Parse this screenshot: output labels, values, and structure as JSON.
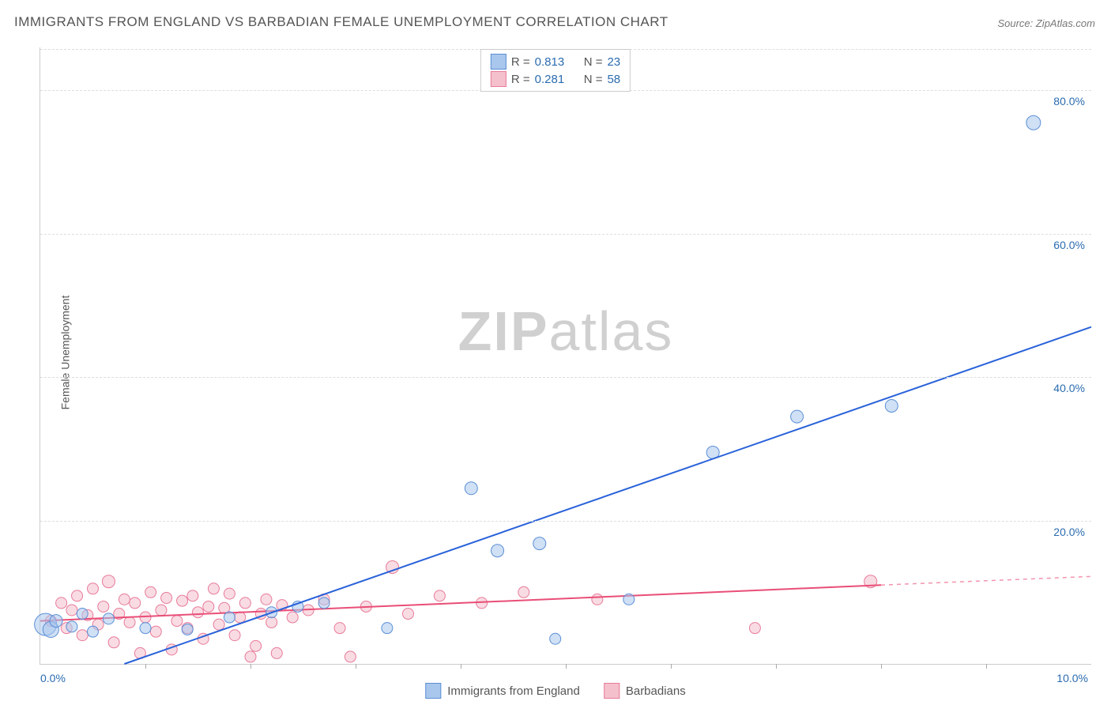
{
  "title": "IMMIGRANTS FROM ENGLAND VS BARBADIAN FEMALE UNEMPLOYMENT CORRELATION CHART",
  "source_label": "Source: ",
  "source_value": "ZipAtlas.com",
  "y_axis_label": "Female Unemployment",
  "watermark_zip": "ZIP",
  "watermark_atlas": "atlas",
  "chart": {
    "type": "scatter",
    "x_min": 0.0,
    "x_max": 10.0,
    "y_min": 0.0,
    "y_max": 86.0,
    "x_tick_labels": [
      {
        "pos": 0.0,
        "label": "0.0%"
      },
      {
        "pos": 10.0,
        "label": "10.0%"
      }
    ],
    "x_minor_ticks": [
      1.0,
      2.0,
      3.0,
      4.0,
      5.0,
      6.0,
      7.0,
      8.0,
      9.0
    ],
    "y_tick_labels": [
      {
        "pos": 20.0,
        "label": "20.0%"
      },
      {
        "pos": 40.0,
        "label": "40.0%"
      },
      {
        "pos": 60.0,
        "label": "60.0%"
      },
      {
        "pos": 80.0,
        "label": "80.0%"
      }
    ],
    "grid_color": "#dddddd",
    "background_color": "#ffffff",
    "series": [
      {
        "name": "Immigrants from England",
        "color_fill": "#a9c7ec",
        "color_stroke": "#5b8fd6",
        "trend_color": "#2962d9",
        "r_label": "R =",
        "r_value": "0.813",
        "n_label": "N =",
        "n_value": "23",
        "trend_line": {
          "x1": 0.8,
          "y1": 0.0,
          "x2": 10.0,
          "y2": 47.0
        },
        "trend_dash_extension": null,
        "points": [
          {
            "x": 0.05,
            "y": 5.5,
            "r": 14
          },
          {
            "x": 0.1,
            "y": 4.8,
            "r": 10
          },
          {
            "x": 0.15,
            "y": 6.0,
            "r": 8
          },
          {
            "x": 0.3,
            "y": 5.2,
            "r": 7
          },
          {
            "x": 0.4,
            "y": 7.0,
            "r": 7
          },
          {
            "x": 0.5,
            "y": 4.5,
            "r": 7
          },
          {
            "x": 0.65,
            "y": 6.3,
            "r": 7
          },
          {
            "x": 1.0,
            "y": 5.0,
            "r": 7
          },
          {
            "x": 1.4,
            "y": 4.8,
            "r": 7
          },
          {
            "x": 1.8,
            "y": 6.5,
            "r": 7
          },
          {
            "x": 2.2,
            "y": 7.2,
            "r": 7
          },
          {
            "x": 2.45,
            "y": 8.0,
            "r": 7
          },
          {
            "x": 2.7,
            "y": 8.5,
            "r": 7
          },
          {
            "x": 3.3,
            "y": 5.0,
            "r": 7
          },
          {
            "x": 4.1,
            "y": 24.5,
            "r": 8
          },
          {
            "x": 4.35,
            "y": 15.8,
            "r": 8
          },
          {
            "x": 4.75,
            "y": 16.8,
            "r": 8
          },
          {
            "x": 4.9,
            "y": 3.5,
            "r": 7
          },
          {
            "x": 5.6,
            "y": 9.0,
            "r": 7
          },
          {
            "x": 6.4,
            "y": 29.5,
            "r": 8
          },
          {
            "x": 7.2,
            "y": 34.5,
            "r": 8
          },
          {
            "x": 8.1,
            "y": 36.0,
            "r": 8
          },
          {
            "x": 9.45,
            "y": 75.5,
            "r": 9
          }
        ]
      },
      {
        "name": "Barbadians",
        "color_fill": "#f4c0cc",
        "color_stroke": "#e87b9a",
        "trend_color": "#e94e77",
        "r_label": "R =",
        "r_value": "0.281",
        "n_label": "N =",
        "n_value": "58",
        "trend_line": {
          "x1": 0.0,
          "y1": 6.0,
          "x2": 8.0,
          "y2": 11.0
        },
        "trend_dash_extension": {
          "x1": 8.0,
          "y1": 11.0,
          "x2": 10.0,
          "y2": 12.2
        },
        "points": [
          {
            "x": 0.1,
            "y": 6.0,
            "r": 7
          },
          {
            "x": 0.2,
            "y": 8.5,
            "r": 7
          },
          {
            "x": 0.25,
            "y": 5.0,
            "r": 7
          },
          {
            "x": 0.3,
            "y": 7.5,
            "r": 7
          },
          {
            "x": 0.35,
            "y": 9.5,
            "r": 7
          },
          {
            "x": 0.4,
            "y": 4.0,
            "r": 7
          },
          {
            "x": 0.45,
            "y": 6.8,
            "r": 7
          },
          {
            "x": 0.5,
            "y": 10.5,
            "r": 7
          },
          {
            "x": 0.55,
            "y": 5.5,
            "r": 7
          },
          {
            "x": 0.6,
            "y": 8.0,
            "r": 7
          },
          {
            "x": 0.65,
            "y": 11.5,
            "r": 8
          },
          {
            "x": 0.7,
            "y": 3.0,
            "r": 7
          },
          {
            "x": 0.75,
            "y": 7.0,
            "r": 7
          },
          {
            "x": 0.8,
            "y": 9.0,
            "r": 7
          },
          {
            "x": 0.85,
            "y": 5.8,
            "r": 7
          },
          {
            "x": 0.9,
            "y": 8.5,
            "r": 7
          },
          {
            "x": 0.95,
            "y": 1.5,
            "r": 7
          },
          {
            "x": 1.0,
            "y": 6.5,
            "r": 7
          },
          {
            "x": 1.05,
            "y": 10.0,
            "r": 7
          },
          {
            "x": 1.1,
            "y": 4.5,
            "r": 7
          },
          {
            "x": 1.15,
            "y": 7.5,
            "r": 7
          },
          {
            "x": 1.2,
            "y": 9.2,
            "r": 7
          },
          {
            "x": 1.25,
            "y": 2.0,
            "r": 7
          },
          {
            "x": 1.3,
            "y": 6.0,
            "r": 7
          },
          {
            "x": 1.35,
            "y": 8.8,
            "r": 7
          },
          {
            "x": 1.4,
            "y": 5.0,
            "r": 7
          },
          {
            "x": 1.45,
            "y": 9.5,
            "r": 7
          },
          {
            "x": 1.5,
            "y": 7.2,
            "r": 7
          },
          {
            "x": 1.55,
            "y": 3.5,
            "r": 7
          },
          {
            "x": 1.6,
            "y": 8.0,
            "r": 7
          },
          {
            "x": 1.65,
            "y": 10.5,
            "r": 7
          },
          {
            "x": 1.7,
            "y": 5.5,
            "r": 7
          },
          {
            "x": 1.75,
            "y": 7.8,
            "r": 7
          },
          {
            "x": 1.8,
            "y": 9.8,
            "r": 7
          },
          {
            "x": 1.85,
            "y": 4.0,
            "r": 7
          },
          {
            "x": 1.9,
            "y": 6.5,
            "r": 7
          },
          {
            "x": 1.95,
            "y": 8.5,
            "r": 7
          },
          {
            "x": 2.0,
            "y": 1.0,
            "r": 7
          },
          {
            "x": 2.05,
            "y": 2.5,
            "r": 7
          },
          {
            "x": 2.1,
            "y": 7.0,
            "r": 7
          },
          {
            "x": 2.15,
            "y": 9.0,
            "r": 7
          },
          {
            "x": 2.2,
            "y": 5.8,
            "r": 7
          },
          {
            "x": 2.25,
            "y": 1.5,
            "r": 7
          },
          {
            "x": 2.3,
            "y": 8.2,
            "r": 7
          },
          {
            "x": 2.4,
            "y": 6.5,
            "r": 7
          },
          {
            "x": 2.55,
            "y": 7.5,
            "r": 7
          },
          {
            "x": 2.7,
            "y": 9.0,
            "r": 7
          },
          {
            "x": 2.85,
            "y": 5.0,
            "r": 7
          },
          {
            "x": 2.95,
            "y": 1.0,
            "r": 7
          },
          {
            "x": 3.1,
            "y": 8.0,
            "r": 7
          },
          {
            "x": 3.35,
            "y": 13.5,
            "r": 8
          },
          {
            "x": 3.5,
            "y": 7.0,
            "r": 7
          },
          {
            "x": 3.8,
            "y": 9.5,
            "r": 7
          },
          {
            "x": 4.2,
            "y": 8.5,
            "r": 7
          },
          {
            "x": 4.6,
            "y": 10.0,
            "r": 7
          },
          {
            "x": 5.3,
            "y": 9.0,
            "r": 7
          },
          {
            "x": 6.8,
            "y": 5.0,
            "r": 7
          },
          {
            "x": 7.9,
            "y": 11.5,
            "r": 8
          }
        ]
      }
    ]
  },
  "bottom_legend": [
    {
      "label": "Immigrants from England",
      "fill": "#a9c7ec",
      "stroke": "#5b8fd6"
    },
    {
      "label": "Barbadians",
      "fill": "#f4c0cc",
      "stroke": "#e87b9a"
    }
  ]
}
